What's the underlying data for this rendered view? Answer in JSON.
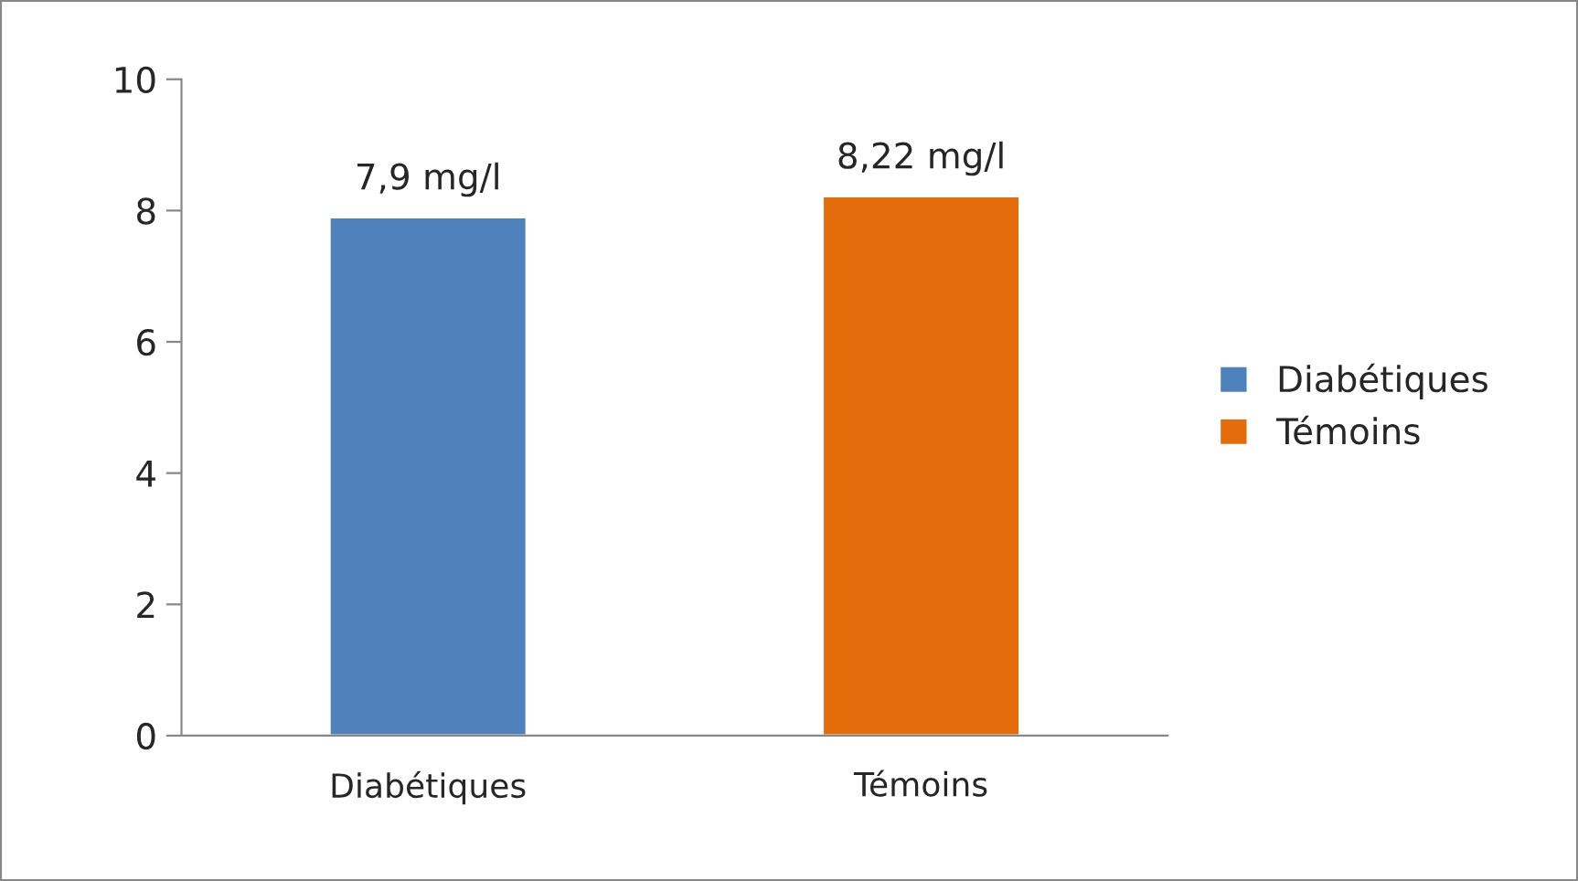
{
  "chart_data": {
    "type": "bar",
    "categories": [
      "Diabétiques",
      "Témoins"
    ],
    "series": [
      {
        "name": "Diabétiques",
        "color": "#4f81bd",
        "values": [
          7.9,
          null
        ],
        "value_labels": [
          "7,9 mg/l",
          null
        ]
      },
      {
        "name": "Témoins",
        "color": "#e46c0a",
        "values": [
          null,
          8.22
        ],
        "value_labels": [
          null,
          "8,22 mg/l"
        ]
      }
    ],
    "ylim": [
      0,
      10
    ],
    "yticks": [
      0,
      2,
      4,
      6,
      8,
      10
    ],
    "legend": "right"
  }
}
